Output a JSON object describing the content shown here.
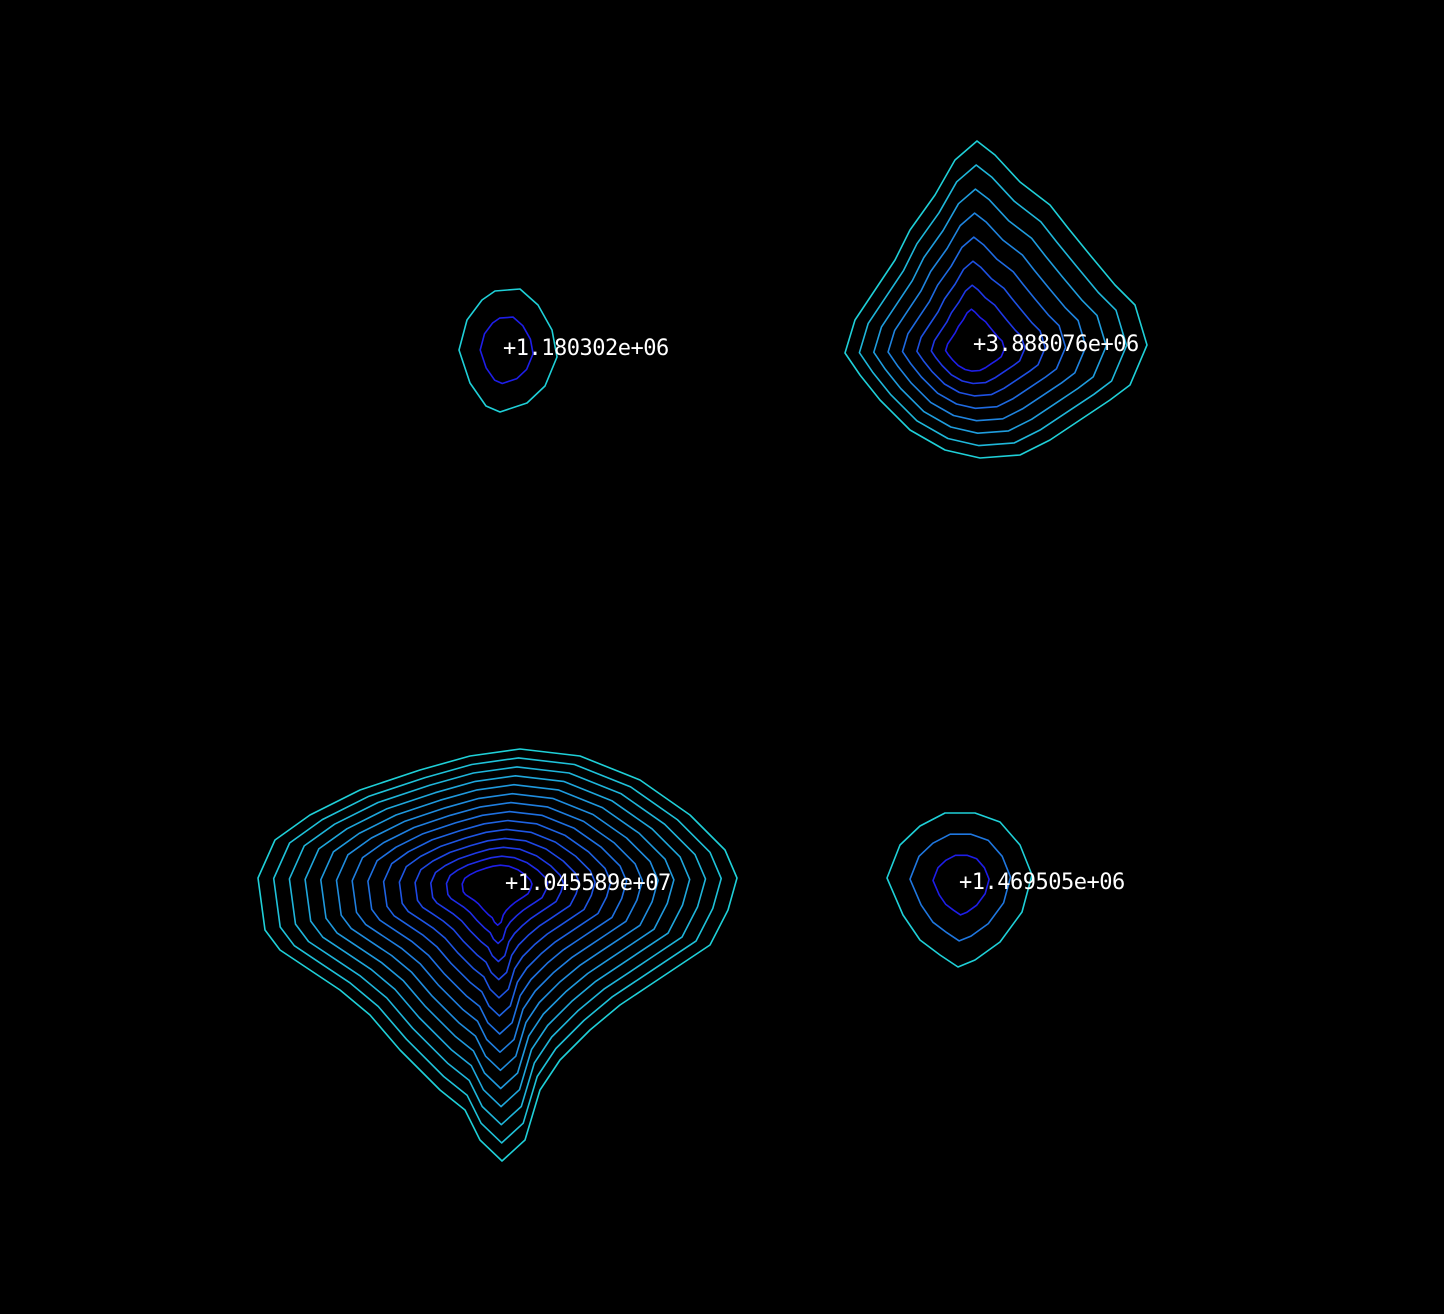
{
  "colors": {
    "background": "#000000",
    "label": "#ffffff",
    "outer_contour": "#1fd0d8",
    "inner_contour": "#1e1ee8"
  },
  "peaks": [
    {
      "id": "peak-top-left",
      "label": "+1.180302e+06",
      "contour_levels": 2
    },
    {
      "id": "peak-top-right",
      "label": "+3.888076e+06",
      "contour_levels": 8
    },
    {
      "id": "peak-bottom-left",
      "label": "+1.045589e+07",
      "contour_levels": 14
    },
    {
      "id": "peak-bottom-right",
      "label": "+1.469505e+06",
      "contour_levels": 3
    }
  ]
}
